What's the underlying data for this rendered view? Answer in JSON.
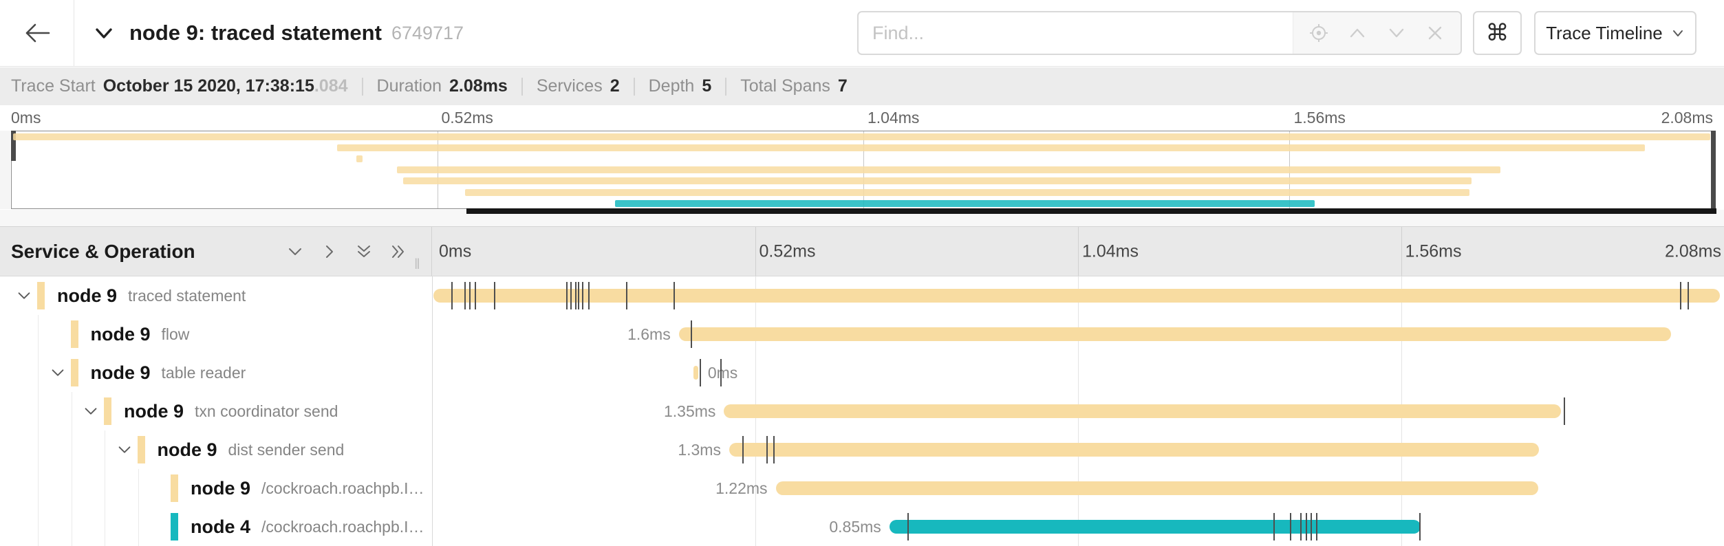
{
  "header": {
    "title": "node 9: traced statement",
    "trace_id": "6749717",
    "find_placeholder": "Find...",
    "command_symbol": "⌘",
    "view_selector_label": "Trace Timeline"
  },
  "summary": {
    "items": [
      {
        "label": "Trace Start",
        "value": "October 15 2020, 17:38:15",
        "suffix": ".084"
      },
      {
        "label": "Duration",
        "value": "2.08ms"
      },
      {
        "label": "Services",
        "value": "2"
      },
      {
        "label": "Depth",
        "value": "5"
      },
      {
        "label": "Total Spans",
        "value": "7"
      }
    ]
  },
  "timeline": {
    "column_header": "Service & Operation",
    "axis_ticks": [
      "0ms",
      "0.52ms",
      "1.04ms",
      "1.56ms",
      "2.08ms"
    ],
    "axis_tick_pcts": [
      0,
      25,
      50,
      75,
      100
    ],
    "colors": {
      "node9": "#F8DCA1",
      "node4": "#17B8BE"
    },
    "viewport_bar": {
      "left_pct": 27.0,
      "width_pct": 72.5
    },
    "spans": [
      {
        "service": "node 9",
        "operation": "traced statement",
        "level": 0,
        "expandable": true,
        "color": "#F8DCA1",
        "start_pct": 0.1,
        "width_pct": 99.6,
        "duration_label": "",
        "label_side": "none",
        "ticks": [
          1.5,
          2.5,
          2.9,
          3.3,
          4.8,
          10.4,
          10.7,
          11.1,
          11.3,
          11.6,
          12.1,
          15.0,
          18.7,
          96.6,
          97.2
        ]
      },
      {
        "service": "node 9",
        "operation": "flow",
        "level": 1,
        "expandable": false,
        "color": "#F8DCA1",
        "start_pct": 19.1,
        "width_pct": 76.8,
        "duration_label": "1.6ms",
        "label_side": "left",
        "ticks": [
          20.0
        ]
      },
      {
        "service": "node 9",
        "operation": "table reader",
        "level": 1,
        "expandable": true,
        "color": "#F8DCA1",
        "start_pct": 20.25,
        "width_pct": 0.35,
        "duration_label": "0ms",
        "label_side": "right",
        "ticks": [
          20.7,
          22.3
        ]
      },
      {
        "service": "node 9",
        "operation": "txn coordinator send",
        "level": 2,
        "expandable": true,
        "color": "#F8DCA1",
        "start_pct": 22.6,
        "width_pct": 64.8,
        "duration_label": "1.35ms",
        "label_side": "left",
        "ticks": [
          87.6
        ]
      },
      {
        "service": "node 9",
        "operation": "dist sender send",
        "level": 3,
        "expandable": true,
        "color": "#F8DCA1",
        "start_pct": 23.0,
        "width_pct": 62.7,
        "duration_label": "1.3ms",
        "label_side": "left",
        "ticks": [
          24.0,
          25.9,
          26.4
        ]
      },
      {
        "service": "node 9",
        "operation": "/cockroach.roachpb.I…",
        "level": 4,
        "expandable": false,
        "color": "#F8DCA1",
        "start_pct": 26.6,
        "width_pct": 59.0,
        "duration_label": "1.22ms",
        "label_side": "left",
        "ticks": []
      },
      {
        "service": "node 4",
        "operation": "/cockroach.roachpb.I…",
        "level": 4,
        "expandable": false,
        "color": "#17B8BE",
        "start_pct": 35.4,
        "width_pct": 41.1,
        "duration_label": "0.85ms",
        "label_side": "left",
        "ticks": [
          36.8,
          65.1,
          66.4,
          67.2,
          67.6,
          68.0,
          68.4,
          76.4
        ]
      }
    ]
  }
}
